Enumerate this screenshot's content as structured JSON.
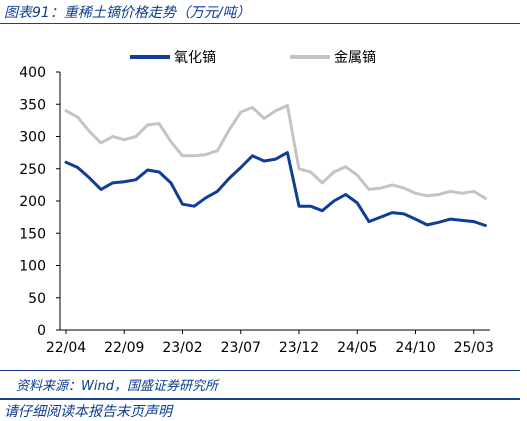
{
  "title": "图表91：重稀土镝价格走势（万元/吨）",
  "source": "资料来源：Wind，国盛证券研究所",
  "footer_cut": "请仔细阅读本报告末页声明",
  "chart_data": {
    "type": "line",
    "ylim": [
      0,
      400
    ],
    "yticks": [
      "0",
      "50",
      "100",
      "150",
      "200",
      "250",
      "300",
      "350",
      "400"
    ],
    "xticks": [
      "22/04",
      "22/09",
      "23/02",
      "23/07",
      "23/12",
      "24/05",
      "24/10",
      "25/03"
    ],
    "x": [
      "22/04",
      "22/05",
      "22/06",
      "22/07",
      "22/08",
      "22/09",
      "22/10",
      "22/11",
      "22/12",
      "23/01",
      "23/02",
      "23/03",
      "23/04",
      "23/05",
      "23/06",
      "23/07",
      "23/08",
      "23/09",
      "23/10",
      "23/11",
      "23/12",
      "24/01",
      "24/02",
      "24/03",
      "24/04",
      "24/05",
      "24/06",
      "24/07",
      "24/08",
      "24/09",
      "24/10",
      "24/11",
      "24/12",
      "25/01",
      "25/02",
      "25/03",
      "25/04"
    ],
    "legend_position": "top",
    "series": [
      {
        "name": "氧化镝",
        "color": "#0f3d99",
        "values": [
          260,
          252,
          236,
          218,
          228,
          230,
          233,
          248,
          245,
          228,
          195,
          192,
          205,
          215,
          235,
          252,
          270,
          262,
          265,
          275,
          192,
          192,
          185,
          200,
          210,
          197,
          168,
          175,
          182,
          180,
          172,
          163,
          167,
          172,
          170,
          168,
          162
        ]
      },
      {
        "name": "金属镝",
        "color": "#c4c4c4",
        "values": [
          340,
          330,
          308,
          290,
          300,
          295,
          300,
          318,
          320,
          292,
          270,
          270,
          272,
          278,
          310,
          338,
          345,
          328,
          340,
          348,
          250,
          245,
          228,
          245,
          253,
          240,
          218,
          220,
          225,
          220,
          212,
          208,
          210,
          215,
          212,
          215,
          204
        ]
      }
    ]
  }
}
